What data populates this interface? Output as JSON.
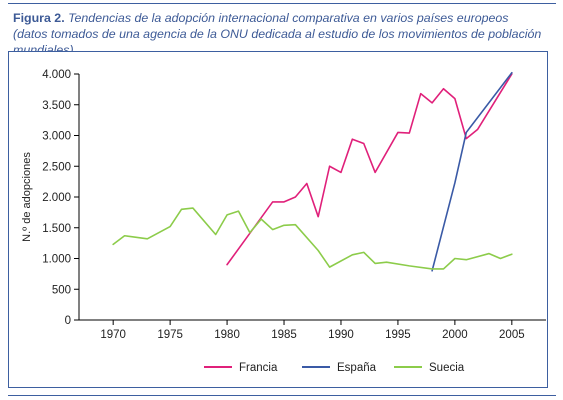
{
  "caption": {
    "label": "Figura 2.",
    "line1": "Tendencias de la adopción internacional comparativa en varios países europeos",
    "line2": "(datos tomados de una agencia de la ONU dedicada al estudio de los movimientos de población mundiales)."
  },
  "colors": {
    "frame": "#3d5fa0",
    "caption": "#3d5a96",
    "Francia": "#e0207a",
    "España": "#3a5aa6",
    "Suecia": "#8ccc4a"
  },
  "chart_data": {
    "type": "line",
    "title": "",
    "xlabel": "",
    "ylabel": "N.º de adopciones",
    "xlim": [
      1967,
      2008
    ],
    "ylim": [
      0,
      4000
    ],
    "x_ticks": [
      1970,
      1975,
      1980,
      1985,
      1990,
      1995,
      2000,
      2005
    ],
    "y_ticks": [
      0,
      500,
      1000,
      1500,
      2000,
      2500,
      3000,
      3500,
      4000
    ],
    "y_tick_labels": [
      "0",
      "500",
      "1.000",
      "1.500",
      "2.000",
      "2.500",
      "3.000",
      "3.500",
      "4.000"
    ],
    "grid": false,
    "legend_position": "bottom",
    "series": [
      {
        "name": "Francia",
        "points": [
          [
            1980,
            900
          ],
          [
            1984,
            1920
          ],
          [
            1985,
            1920
          ],
          [
            1986,
            2000
          ],
          [
            1987,
            2220
          ],
          [
            1988,
            1680
          ],
          [
            1989,
            2500
          ],
          [
            1990,
            2400
          ],
          [
            1991,
            2940
          ],
          [
            1992,
            2870
          ],
          [
            1993,
            2400
          ],
          [
            1995,
            3050
          ],
          [
            1996,
            3040
          ],
          [
            1997,
            3680
          ],
          [
            1998,
            3530
          ],
          [
            1999,
            3760
          ],
          [
            2000,
            3600
          ],
          [
            2001,
            2950
          ],
          [
            2002,
            3100
          ],
          [
            2005,
            4000
          ]
        ]
      },
      {
        "name": "España",
        "points": [
          [
            1998,
            800
          ],
          [
            2000,
            2230
          ],
          [
            2001,
            3050
          ],
          [
            2005,
            4020
          ]
        ]
      },
      {
        "name": "Suecia",
        "points": [
          [
            1970,
            1230
          ],
          [
            1971,
            1370
          ],
          [
            1973,
            1320
          ],
          [
            1975,
            1520
          ],
          [
            1976,
            1800
          ],
          [
            1977,
            1820
          ],
          [
            1979,
            1390
          ],
          [
            1980,
            1710
          ],
          [
            1981,
            1770
          ],
          [
            1982,
            1420
          ],
          [
            1983,
            1640
          ],
          [
            1984,
            1470
          ],
          [
            1985,
            1540
          ],
          [
            1986,
            1550
          ],
          [
            1988,
            1130
          ],
          [
            1989,
            860
          ],
          [
            1991,
            1060
          ],
          [
            1992,
            1100
          ],
          [
            1993,
            920
          ],
          [
            1994,
            940
          ],
          [
            1996,
            880
          ],
          [
            1998,
            830
          ],
          [
            1999,
            830
          ],
          [
            2000,
            1000
          ],
          [
            2001,
            980
          ],
          [
            2003,
            1080
          ],
          [
            2004,
            1000
          ],
          [
            2005,
            1070
          ]
        ]
      }
    ]
  }
}
